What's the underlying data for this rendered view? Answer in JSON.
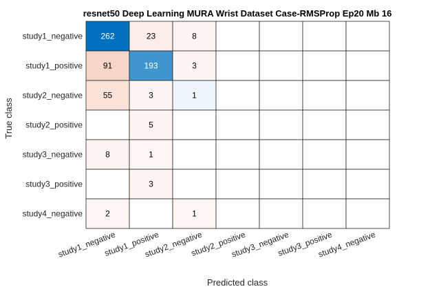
{
  "chart_data": {
    "type": "heatmap",
    "title": "resnet50 Deep Learning MURA Wrist Dataset Case-RMSProp Ep20 Mb 16",
    "xlabel": "Predicted class",
    "ylabel": "True class",
    "row_labels": [
      "study1_negative",
      "study1_positive",
      "study2_negative",
      "study2_positive",
      "study3_negative",
      "study3_positive",
      "study4_negative"
    ],
    "col_labels": [
      "study1_negative",
      "study1_positive",
      "study2_negative",
      "study2_positive",
      "study3_negative",
      "study3_positive",
      "study4_negative"
    ],
    "values": [
      [
        262,
        23,
        8,
        0,
        0,
        0,
        0
      ],
      [
        91,
        193,
        3,
        0,
        0,
        0,
        0
      ],
      [
        55,
        3,
        1,
        0,
        0,
        0,
        0
      ],
      [
        0,
        5,
        0,
        0,
        0,
        0,
        0
      ],
      [
        8,
        1,
        0,
        0,
        0,
        0,
        0
      ],
      [
        0,
        3,
        0,
        0,
        0,
        0,
        0
      ],
      [
        2,
        0,
        1,
        0,
        0,
        0,
        0
      ]
    ],
    "colors": {
      "diagonal_max": "#0072bd",
      "off_diagonal_max": "#d95319",
      "empty": "#ffffff",
      "grid": "#262626"
    }
  }
}
